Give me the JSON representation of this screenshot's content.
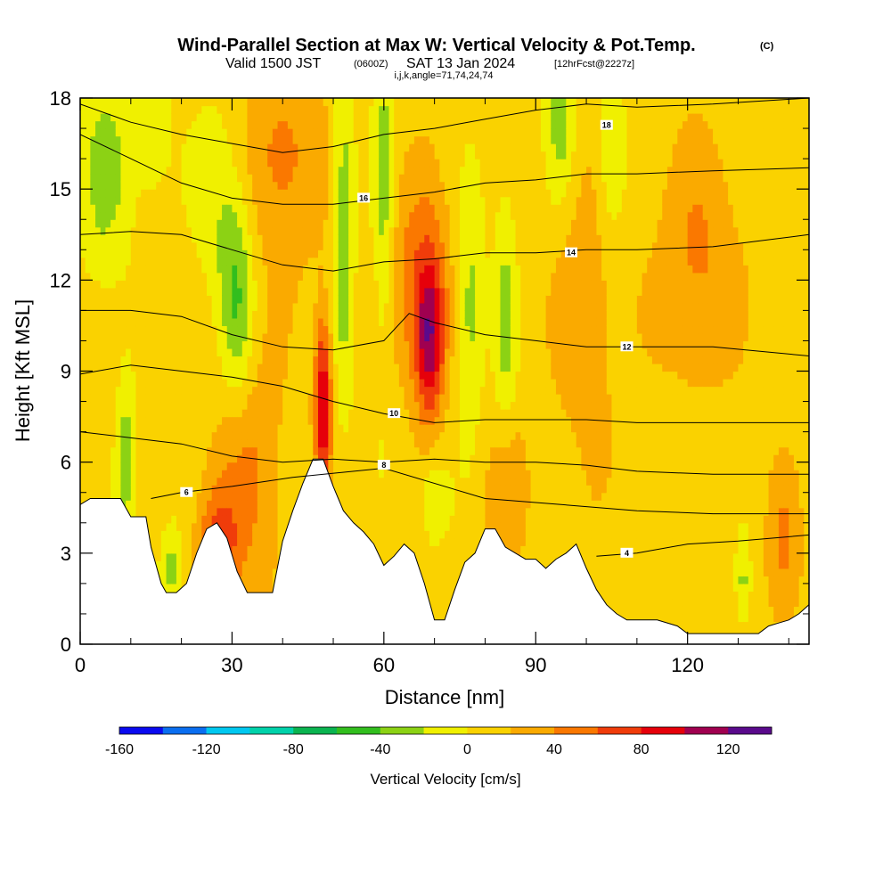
{
  "title": {
    "main": "Wind-Parallel Section at Max W: Vertical Velocity & Pot.Temp.",
    "tag": "(C)",
    "valid_prefix": "Valid 1500 JST",
    "valid_utc": "(0600Z)",
    "valid_date": "SAT 13 Jan 2024",
    "forecast": "[12hrFcst@2227z]",
    "indices": "i,j,k,angle=71,74,24,74"
  },
  "chart_data": {
    "type": "heatmap",
    "xlabel": "Distance [nm]",
    "ylabel": "Height [Kft MSL]",
    "xlim": [
      0,
      144
    ],
    "ylim": [
      0,
      18
    ],
    "x_ticks": [
      0,
      30,
      60,
      90,
      120
    ],
    "y_ticks": [
      0,
      3,
      6,
      9,
      12,
      15,
      18
    ],
    "colorbar": {
      "title": "Vertical Velocity [cm/s]",
      "levels": [
        -160,
        -140,
        -120,
        -100,
        -80,
        -60,
        -40,
        -20,
        0,
        20,
        40,
        60,
        80,
        100,
        120,
        140
      ],
      "tick_labels": [
        "-160",
        "-120",
        "-80",
        "-40",
        "0",
        "40",
        "80",
        "120"
      ],
      "colors": [
        "#0a0af0",
        "#0a6ef0",
        "#00c8f0",
        "#00d2aa",
        "#0ab450",
        "#32be1e",
        "#8cd214",
        "#f0f000",
        "#fad200",
        "#faaa00",
        "#fa7800",
        "#f03c0a",
        "#e6000a",
        "#a00050",
        "#5a0a8c"
      ]
    },
    "terrain": [
      [
        0,
        4.6
      ],
      [
        2,
        4.8
      ],
      [
        4,
        4.8
      ],
      [
        8,
        4.8
      ],
      [
        10,
        4.2
      ],
      [
        13,
        4.2
      ],
      [
        14,
        3.2
      ],
      [
        16,
        2.0
      ],
      [
        17,
        1.7
      ],
      [
        19,
        1.7
      ],
      [
        21,
        2.0
      ],
      [
        23,
        3.0
      ],
      [
        25,
        3.8
      ],
      [
        27,
        4.0
      ],
      [
        29,
        3.5
      ],
      [
        31,
        2.4
      ],
      [
        33,
        1.7
      ],
      [
        38,
        1.7
      ],
      [
        40,
        3.4
      ],
      [
        42,
        4.4
      ],
      [
        44,
        5.3
      ],
      [
        46,
        6.1
      ],
      [
        48,
        6.1
      ],
      [
        50,
        5.2
      ],
      [
        52,
        4.4
      ],
      [
        54,
        4.0
      ],
      [
        56,
        3.7
      ],
      [
        58,
        3.3
      ],
      [
        60,
        2.6
      ],
      [
        62,
        2.9
      ],
      [
        64,
        3.3
      ],
      [
        66,
        3.0
      ],
      [
        68,
        2.0
      ],
      [
        70,
        0.8
      ],
      [
        72,
        0.8
      ],
      [
        74,
        1.8
      ],
      [
        76,
        2.7
      ],
      [
        78,
        3.0
      ],
      [
        80,
        3.8
      ],
      [
        82,
        3.8
      ],
      [
        84,
        3.2
      ],
      [
        86,
        3.0
      ],
      [
        88,
        2.8
      ],
      [
        90,
        2.8
      ],
      [
        92,
        2.5
      ],
      [
        94,
        2.8
      ],
      [
        96,
        3.0
      ],
      [
        98,
        3.3
      ],
      [
        100,
        2.5
      ],
      [
        102,
        1.8
      ],
      [
        104,
        1.3
      ],
      [
        106,
        1.0
      ],
      [
        108,
        0.8
      ],
      [
        110,
        0.8
      ],
      [
        114,
        0.8
      ],
      [
        118,
        0.6
      ],
      [
        120,
        0.35
      ],
      [
        130,
        0.35
      ],
      [
        134,
        0.35
      ],
      [
        136,
        0.6
      ],
      [
        138,
        0.7
      ],
      [
        140,
        0.8
      ],
      [
        142,
        1.0
      ],
      [
        144,
        1.3
      ]
    ],
    "w_features": [
      {
        "x": 48,
        "y": 8.0,
        "sx": 1.2,
        "sy": 2.0,
        "w": 95
      },
      {
        "x": 69,
        "y": 10.0,
        "sx": 2.0,
        "sy": 1.8,
        "w": 90
      },
      {
        "x": 67,
        "y": 12.0,
        "sx": 4.5,
        "sy": 2.5,
        "w": 45
      },
      {
        "x": 33,
        "y": 6.0,
        "sx": 5.0,
        "sy": 3.5,
        "w": 35
      },
      {
        "x": 27,
        "y": 3.0,
        "sx": 3.0,
        "sy": 1.5,
        "w": 55
      },
      {
        "x": 40,
        "y": 16.0,
        "sx": 6.0,
        "sy": 2.5,
        "w": 40
      },
      {
        "x": 122,
        "y": 12.5,
        "sx": 6.0,
        "sy": 3.0,
        "w": 35
      },
      {
        "x": 139,
        "y": 3.0,
        "sx": 2.5,
        "sy": 2.0,
        "w": 35
      },
      {
        "x": 84,
        "y": 5.0,
        "sx": 3.0,
        "sy": 2.0,
        "w": 30
      },
      {
        "x": 100,
        "y": 11.0,
        "sx": 5.0,
        "sy": 4.0,
        "w": 25
      },
      {
        "x": 31,
        "y": 11.0,
        "sx": 2.5,
        "sy": 2.5,
        "w": -50
      },
      {
        "x": 28,
        "y": 14.5,
        "sx": 4.0,
        "sy": 2.5,
        "w": -25
      },
      {
        "x": 52,
        "y": 14.0,
        "sx": 1.5,
        "sy": 4.0,
        "w": -45
      },
      {
        "x": 60,
        "y": 14.5,
        "sx": 1.5,
        "sy": 4.0,
        "w": -40
      },
      {
        "x": 77,
        "y": 11.0,
        "sx": 2.0,
        "sy": 2.5,
        "w": -40
      },
      {
        "x": 84,
        "y": 10.5,
        "sx": 1.5,
        "sy": 3.0,
        "w": -35
      },
      {
        "x": 9,
        "y": 6.0,
        "sx": 1.2,
        "sy": 2.0,
        "w": -40
      },
      {
        "x": 18,
        "y": 2.5,
        "sx": 1.5,
        "sy": 1.0,
        "w": -35
      },
      {
        "x": 5,
        "y": 15.5,
        "sx": 3.5,
        "sy": 2.5,
        "w": -35
      },
      {
        "x": 95,
        "y": 17.5,
        "sx": 2.0,
        "sy": 2.0,
        "w": -40
      },
      {
        "x": 105,
        "y": 16.0,
        "sx": 2.0,
        "sy": 2.0,
        "w": -35
      },
      {
        "x": 70,
        "y": 4.8,
        "sx": 2.0,
        "sy": 1.0,
        "w": -30
      },
      {
        "x": 131,
        "y": 2.0,
        "sx": 1.0,
        "sy": 1.0,
        "w": -35
      },
      {
        "x": 14,
        "y": 17.0,
        "sx": 2.5,
        "sy": 1.5,
        "w": -30
      }
    ],
    "theta_contours": [
      {
        "label": "4",
        "points": [
          [
            102,
            2.9
          ],
          [
            110,
            3.0
          ],
          [
            120,
            3.3
          ],
          [
            130,
            3.4
          ],
          [
            144,
            3.6
          ]
        ],
        "label_at": [
          108,
          3.0
        ]
      },
      {
        "label": "6",
        "points": [
          [
            14,
            4.8
          ],
          [
            20,
            5.0
          ],
          [
            30,
            5.2
          ],
          [
            42,
            5.5
          ],
          [
            60,
            5.8
          ],
          [
            80,
            4.8
          ],
          [
            95,
            4.6
          ],
          [
            110,
            4.4
          ],
          [
            125,
            4.3
          ],
          [
            144,
            4.3
          ]
        ],
        "label_at": [
          21,
          5.0
        ]
      },
      {
        "label": "8",
        "points": [
          [
            0,
            7.0
          ],
          [
            10,
            6.8
          ],
          [
            20,
            6.6
          ],
          [
            30,
            6.2
          ],
          [
            40,
            6.0
          ],
          [
            50,
            6.1
          ],
          [
            60,
            6.0
          ],
          [
            70,
            6.1
          ],
          [
            80,
            6.0
          ],
          [
            90,
            6.0
          ],
          [
            100,
            5.9
          ],
          [
            110,
            5.7
          ],
          [
            125,
            5.6
          ],
          [
            144,
            5.6
          ]
        ],
        "label_at": [
          60,
          5.9
        ]
      },
      {
        "label": "10",
        "points": [
          [
            0,
            8.9
          ],
          [
            10,
            9.2
          ],
          [
            20,
            9.0
          ],
          [
            30,
            8.8
          ],
          [
            40,
            8.5
          ],
          [
            50,
            8.0
          ],
          [
            60,
            7.6
          ],
          [
            70,
            7.3
          ],
          [
            80,
            7.4
          ],
          [
            90,
            7.4
          ],
          [
            100,
            7.4
          ],
          [
            110,
            7.3
          ],
          [
            125,
            7.3
          ],
          [
            144,
            7.3
          ]
        ],
        "label_at": [
          62,
          7.6
        ]
      },
      {
        "label": "12",
        "points": [
          [
            0,
            11.0
          ],
          [
            10,
            11.0
          ],
          [
            20,
            10.8
          ],
          [
            30,
            10.2
          ],
          [
            40,
            9.8
          ],
          [
            50,
            9.7
          ],
          [
            60,
            10.0
          ],
          [
            65,
            10.9
          ],
          [
            70,
            10.6
          ],
          [
            80,
            10.2
          ],
          [
            90,
            10.0
          ],
          [
            100,
            9.8
          ],
          [
            110,
            9.8
          ],
          [
            125,
            9.8
          ],
          [
            144,
            9.5
          ]
        ],
        "label_at": [
          108,
          9.8
        ]
      },
      {
        "label": "14",
        "points": [
          [
            0,
            13.5
          ],
          [
            10,
            13.6
          ],
          [
            20,
            13.5
          ],
          [
            30,
            13.0
          ],
          [
            40,
            12.5
          ],
          [
            50,
            12.3
          ],
          [
            60,
            12.6
          ],
          [
            70,
            12.7
          ],
          [
            80,
            12.9
          ],
          [
            90,
            12.9
          ],
          [
            100,
            13.0
          ],
          [
            110,
            13.0
          ],
          [
            125,
            13.1
          ],
          [
            144,
            13.5
          ]
        ],
        "label_at": [
          97,
          12.9
        ]
      },
      {
        "label": "16",
        "points": [
          [
            0,
            16.8
          ],
          [
            10,
            16.0
          ],
          [
            20,
            15.2
          ],
          [
            30,
            14.7
          ],
          [
            40,
            14.5
          ],
          [
            50,
            14.5
          ],
          [
            60,
            14.7
          ],
          [
            70,
            14.9
          ],
          [
            80,
            15.2
          ],
          [
            90,
            15.3
          ],
          [
            100,
            15.5
          ],
          [
            110,
            15.5
          ],
          [
            125,
            15.6
          ],
          [
            144,
            15.7
          ]
        ],
        "label_at": [
          56,
          14.7
        ]
      },
      {
        "label": "18",
        "points": [
          [
            0,
            17.8
          ],
          [
            10,
            17.2
          ],
          [
            20,
            16.8
          ],
          [
            30,
            16.5
          ],
          [
            40,
            16.2
          ],
          [
            50,
            16.4
          ],
          [
            60,
            16.8
          ],
          [
            70,
            17.0
          ],
          [
            80,
            17.3
          ],
          [
            90,
            17.6
          ],
          [
            100,
            17.8
          ],
          [
            110,
            17.7
          ],
          [
            125,
            17.8
          ],
          [
            144,
            18.0
          ]
        ],
        "label_at": [
          104,
          17.1
        ]
      }
    ]
  }
}
